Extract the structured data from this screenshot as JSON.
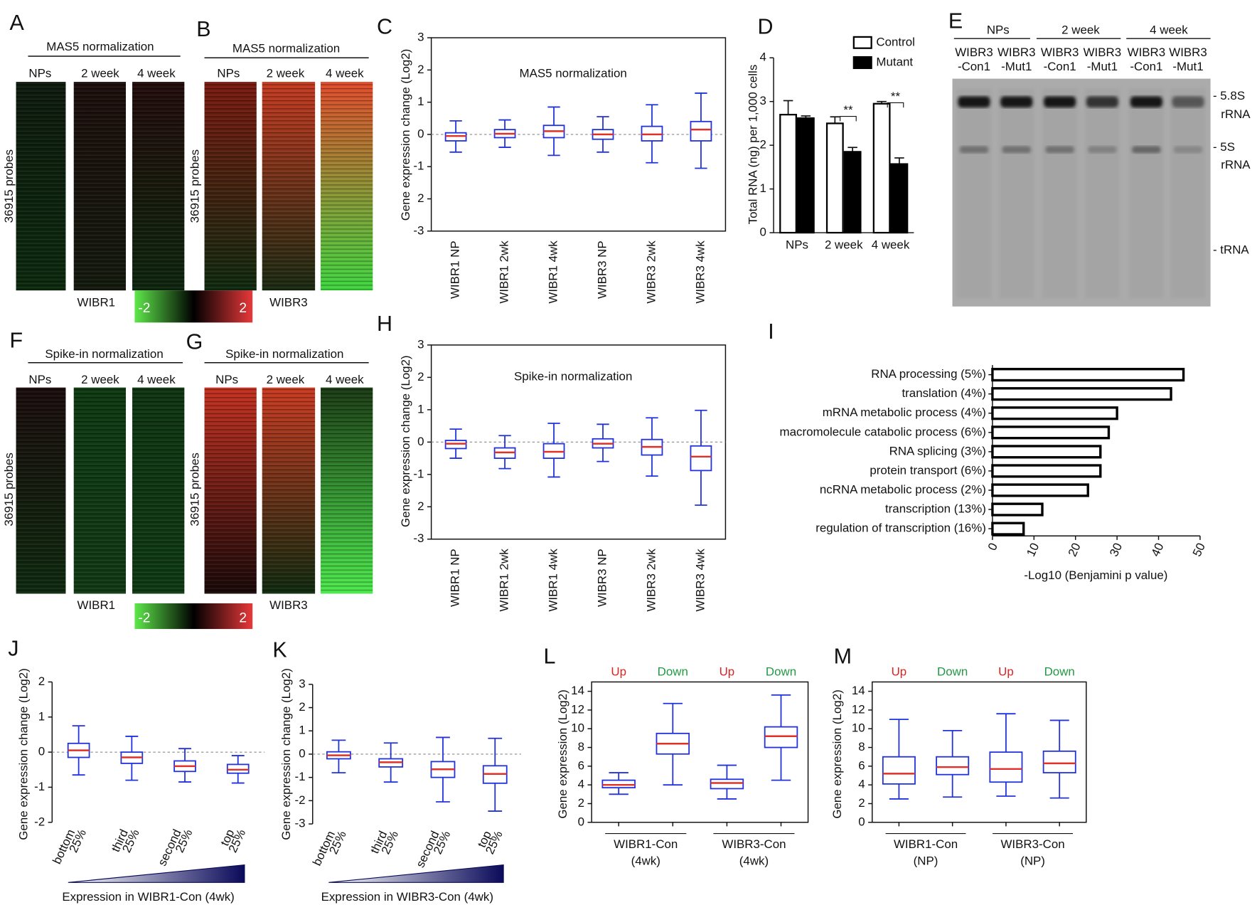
{
  "chart_data": [
    {
      "type": "heatmap",
      "panel": "A",
      "title": "MAS5 normalization",
      "columns": [
        {
          "label": "NPs",
          "colors": [
            "#0e1a0e",
            "#0c2a0e"
          ]
        },
        {
          "label": "2 week",
          "colors": [
            "#1c0e0c",
            "#141a0e"
          ]
        },
        {
          "label": "4 week",
          "colors": [
            "#220c0c",
            "#0e260e"
          ]
        }
      ],
      "ylabel": "36915 probes",
      "xlabel": "WIBR1",
      "colorbar": {
        "ticks": [
          -2,
          2
        ],
        "colors": [
          "#5ee84a",
          "#000000",
          "#e8383a"
        ]
      }
    },
    {
      "type": "heatmap",
      "panel": "B",
      "title": "MAS5 normalization",
      "columns": [
        {
          "label": "NPs",
          "colors": [
            "#7a1a10",
            "#0f2a0f"
          ]
        },
        {
          "label": "2 week",
          "colors": [
            "#c43a20",
            "#1a2a12"
          ]
        },
        {
          "label": "4 week",
          "colors": [
            "#e04a2a",
            "#3fd63f"
          ]
        }
      ],
      "ylabel": "36915 probes",
      "xlabel": "WIBR3"
    },
    {
      "type": "box",
      "panel": "C",
      "annotation": "MAS5 normalization",
      "ylabel": "Gene expression change (Log2)",
      "categories": [
        "WIBR1 NP",
        "WIBR1 2wk",
        "WIBR1 4wk",
        "WIBR3 NP",
        "WIBR3 2wk",
        "WIBR3 4wk"
      ],
      "boxes": [
        {
          "low": -0.55,
          "q1": -0.2,
          "median": -0.05,
          "q3": 0.05,
          "high": 0.42
        },
        {
          "low": -0.4,
          "q1": -0.1,
          "median": 0.02,
          "q3": 0.15,
          "high": 0.45
        },
        {
          "low": -0.65,
          "q1": -0.1,
          "median": 0.1,
          "q3": 0.28,
          "high": 0.85
        },
        {
          "low": -0.55,
          "q1": -0.15,
          "median": 0.0,
          "q3": 0.15,
          "high": 0.55
        },
        {
          "low": -0.88,
          "q1": -0.2,
          "median": 0.0,
          "q3": 0.25,
          "high": 0.92
        },
        {
          "low": -1.05,
          "q1": -0.2,
          "median": 0.15,
          "q3": 0.4,
          "high": 1.28
        }
      ],
      "ylim": [
        -3,
        3
      ],
      "yticks": [
        -3,
        {
          "value": -2,
          "label": "2"
        },
        -1,
        0,
        1,
        2,
        3
      ],
      "zero_line": true,
      "box_color": "#2233dd",
      "median_color": "#e0302a"
    },
    {
      "type": "bar",
      "panel": "D",
      "ylabel": "Total RNA (ng) per 1,000 cells",
      "categories": [
        "NPs",
        "2 week",
        "4 week"
      ],
      "series": [
        {
          "name": "Control",
          "color": "#ffffff",
          "values": [
            2.7,
            2.5,
            2.95
          ],
          "errors": [
            0.32,
            0.15,
            0.05
          ]
        },
        {
          "name": "Mutant",
          "color": "#000000",
          "values": [
            2.62,
            1.85,
            1.57
          ],
          "errors": [
            0.05,
            0.1,
            0.14
          ]
        }
      ],
      "ylim": [
        0,
        4
      ],
      "yticks": [
        0,
        1,
        2,
        3,
        4
      ],
      "annotations": [
        "**",
        "**"
      ]
    },
    {
      "type": "gel",
      "panel": "E",
      "groups": [
        "NPs",
        "2 week",
        "4 week"
      ],
      "lanes": [
        [
          "WIBR3",
          "-Con1"
        ],
        [
          "WIBR3",
          "-Mut1"
        ],
        [
          "WIBR3",
          "-Con1"
        ],
        [
          "WIBR3",
          "-Mut1"
        ],
        [
          "WIBR3",
          "-Con1"
        ],
        [
          "WIBR3",
          "-Mut1"
        ]
      ],
      "band_labels": [
        [
          "- 5.8S",
          "rRNA"
        ],
        [
          "- 5S",
          "rRNA"
        ],
        [
          "- tRNA"
        ]
      ]
    },
    {
      "type": "heatmap",
      "panel": "F",
      "title": "Spike-in normalization",
      "columns": [
        {
          "label": "NPs",
          "colors": [
            "#1a0d0d",
            "#0f2a0f"
          ]
        },
        {
          "label": "2 week",
          "colors": [
            "#0e3a12",
            "#113a14"
          ]
        },
        {
          "label": "4 week",
          "colors": [
            "#0f3512",
            "#0f3a14"
          ]
        }
      ],
      "ylabel": "36915 probes",
      "xlabel": "WIBR1",
      "colorbar": {
        "ticks": [
          -2,
          2
        ],
        "colors": [
          "#5ee84a",
          "#000000",
          "#e8383a"
        ]
      }
    },
    {
      "type": "heatmap",
      "panel": "G",
      "title": "Spike-in normalization",
      "columns": [
        {
          "label": "NPs",
          "colors": [
            "#c33020",
            "#180808"
          ]
        },
        {
          "label": "2 week",
          "colors": [
            "#c83a20",
            "#0f2a0f"
          ]
        },
        {
          "label": "4 week",
          "colors": [
            "#1a3a14",
            "#4ce84c"
          ]
        }
      ],
      "ylabel": "36915 probes",
      "xlabel": "WIBR3"
    },
    {
      "type": "box",
      "panel": "H",
      "annotation": "Spike-in normalization",
      "ylabel": "Gene expression change (Log2)",
      "categories": [
        "WIBR1 NP",
        "WIBR1 2wk",
        "WIBR1 4wk",
        "WIBR3 NP",
        "WIBR3 2wk",
        "WIBR3 4wk"
      ],
      "boxes": [
        {
          "low": -0.5,
          "q1": -0.2,
          "median": -0.05,
          "q3": 0.05,
          "high": 0.4
        },
        {
          "low": -0.82,
          "q1": -0.5,
          "median": -0.32,
          "q3": -0.18,
          "high": 0.2
        },
        {
          "low": -1.08,
          "q1": -0.5,
          "median": -0.3,
          "q3": -0.05,
          "high": 0.58
        },
        {
          "low": -0.6,
          "q1": -0.18,
          "median": -0.05,
          "q3": 0.1,
          "high": 0.55
        },
        {
          "low": -1.05,
          "q1": -0.4,
          "median": -0.15,
          "q3": 0.08,
          "high": 0.75
        },
        {
          "low": -1.95,
          "q1": -0.88,
          "median": -0.45,
          "q3": -0.12,
          "high": 0.98
        }
      ],
      "ylim": [
        -3,
        3
      ],
      "yticks": [
        -3,
        {
          "value": -2,
          "label": "2"
        },
        -1,
        0,
        1,
        2,
        3
      ],
      "zero_line": true,
      "box_color": "#2233dd",
      "median_color": "#e0302a"
    },
    {
      "type": "hbar",
      "panel": "I",
      "xlabel": "-Log10 (Benjamini p value)",
      "categories": [
        "RNA processing (5%)",
        "translation (4%)",
        "mRNA metabolic process (4%)",
        "macromolecule catabolic process (6%)",
        "RNA splicing (3%)",
        "protein transport (6%)",
        "ncRNA metabolic process (2%)",
        "transcription (13%)",
        "regulation of transcription (16%)"
      ],
      "values": [
        46,
        43,
        30,
        28,
        26,
        26,
        23,
        12,
        7.5
      ],
      "color": "#ffffff",
      "xlim": [
        0,
        50
      ],
      "xticks": [
        0,
        10,
        20,
        30,
        40,
        50
      ]
    },
    {
      "type": "box",
      "panel": "J",
      "ylabel": "Gene expression change (Log2)",
      "xlabel": "Expression in WIBR1-Con (4wk)",
      "categories": [
        [
          "bottom",
          "25%"
        ],
        [
          "third",
          "25%"
        ],
        [
          "second",
          "25%"
        ],
        [
          "top",
          "25%"
        ]
      ],
      "boxes": [
        {
          "low": -0.65,
          "q1": -0.15,
          "median": 0.05,
          "q3": 0.25,
          "high": 0.75
        },
        {
          "low": -0.8,
          "q1": -0.32,
          "median": -0.15,
          "q3": 0.0,
          "high": 0.45
        },
        {
          "low": -0.85,
          "q1": -0.55,
          "median": -0.4,
          "q3": -0.25,
          "high": 0.1
        },
        {
          "low": -0.88,
          "q1": -0.6,
          "median": -0.5,
          "q3": -0.35,
          "high": -0.1
        }
      ],
      "ylim": [
        -2,
        2
      ],
      "yticks": [
        -2,
        -1,
        0,
        1,
        2
      ],
      "zero_line": true,
      "box_color": "#2233dd",
      "median_color": "#e0302a"
    },
    {
      "type": "box",
      "panel": "K",
      "ylabel": "Gene expression change (Log2)",
      "xlabel": "Expression in WIBR3-Con (4wk)",
      "categories": [
        [
          "bottom",
          "25%"
        ],
        [
          "third",
          "25%"
        ],
        [
          "second",
          "25%"
        ],
        [
          "top",
          "25%"
        ]
      ],
      "boxes": [
        {
          "low": -0.8,
          "q1": -0.2,
          "median": -0.05,
          "q3": 0.1,
          "high": 0.6
        },
        {
          "low": -1.2,
          "q1": -0.55,
          "median": -0.35,
          "q3": -0.2,
          "high": 0.48
        },
        {
          "low": -2.05,
          "q1": -1.0,
          "median": -0.65,
          "q3": -0.32,
          "high": 0.72
        },
        {
          "low": -2.45,
          "q1": -1.25,
          "median": -0.85,
          "q3": -0.5,
          "high": 0.68
        }
      ],
      "ylim": [
        -3,
        3
      ],
      "yticks": [
        -3,
        -2,
        -1,
        0,
        1,
        2,
        3
      ],
      "zero_line": true,
      "box_color": "#2233dd",
      "median_color": "#e0302a"
    },
    {
      "type": "box",
      "panel": "L",
      "ylabel": "Gene expression (Log2)",
      "box_labels": [
        "Up",
        "Down",
        "Up",
        "Down"
      ],
      "box_label_colors": [
        "#dd2222",
        "#229944",
        "#dd2222",
        "#229944"
      ],
      "groups": [
        [
          "WIBR1-Con",
          "(4wk)"
        ],
        [
          "WIBR3-Con",
          "(4wk)"
        ]
      ],
      "boxes": [
        {
          "low": 3.0,
          "q1": 3.7,
          "median": 4.0,
          "q3": 4.5,
          "high": 5.3
        },
        {
          "low": 4.0,
          "q1": 7.3,
          "median": 8.4,
          "q3": 9.5,
          "high": 12.7
        },
        {
          "low": 2.5,
          "q1": 3.6,
          "median": 4.2,
          "q3": 4.6,
          "high": 6.1
        },
        {
          "low": 4.5,
          "q1": 8.0,
          "median": 9.2,
          "q3": 10.2,
          "high": 13.6
        }
      ],
      "ylim": [
        0,
        15
      ],
      "yticks": [
        0,
        2,
        4,
        6,
        8,
        10,
        12,
        14
      ],
      "box_color": "#2233dd",
      "median_color": "#e0302a"
    },
    {
      "type": "box",
      "panel": "M",
      "ylabel": "Gene expression (Log2)",
      "box_labels": [
        "Up",
        "Down",
        "Up",
        "Down"
      ],
      "box_label_colors": [
        "#dd2222",
        "#229944",
        "#dd2222",
        "#229944"
      ],
      "groups": [
        [
          "WIBR1-Con",
          "(NP)"
        ],
        [
          "WIBR3-Con",
          "(NP)"
        ]
      ],
      "boxes": [
        {
          "low": 2.5,
          "q1": 4.1,
          "median": 5.2,
          "q3": 7.0,
          "high": 11.0
        },
        {
          "low": 2.7,
          "q1": 5.1,
          "median": 5.9,
          "q3": 7.0,
          "high": 9.8
        },
        {
          "low": 2.8,
          "q1": 4.3,
          "median": 5.7,
          "q3": 7.5,
          "high": 11.6
        },
        {
          "low": 2.6,
          "q1": 5.3,
          "median": 6.3,
          "q3": 7.6,
          "high": 10.9
        }
      ],
      "ylim": [
        0,
        15
      ],
      "yticks": [
        0,
        2,
        4,
        6,
        8,
        10,
        12,
        14
      ],
      "box_color": "#2233dd",
      "median_color": "#e0302a"
    }
  ]
}
